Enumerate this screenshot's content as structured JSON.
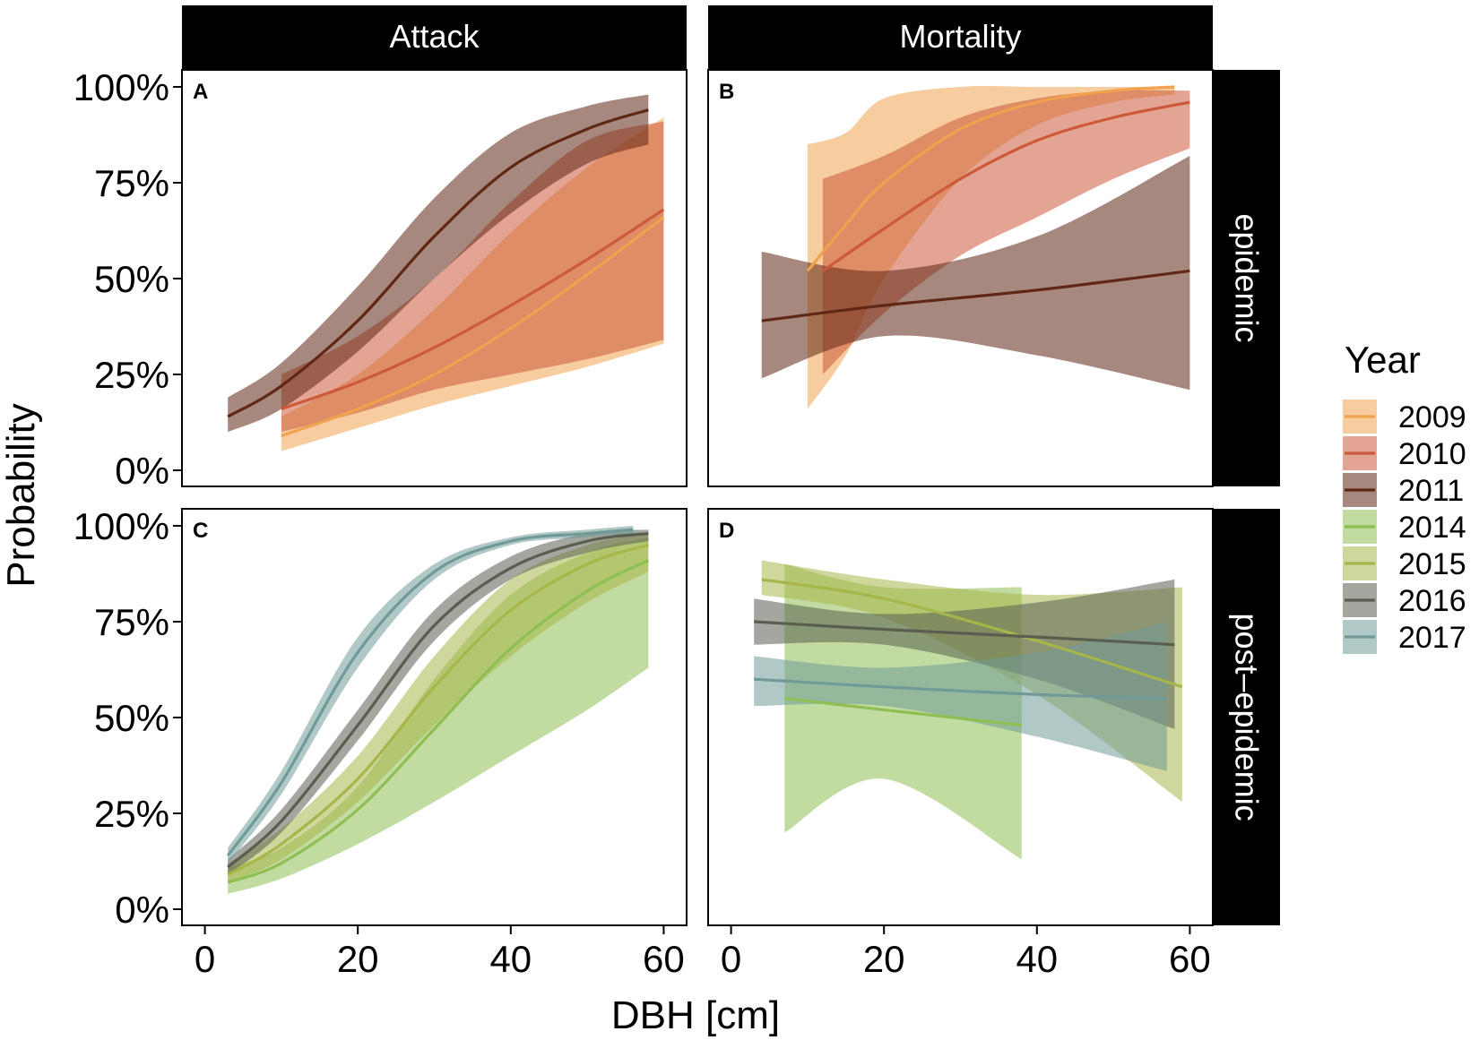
{
  "chart_data": {
    "type": "line",
    "title": "",
    "xlabel": "DBH [cm]",
    "ylabel": "Probability",
    "xlim": [
      -3,
      63
    ],
    "ylim": [
      0,
      100
    ],
    "x_ticks": [
      "0",
      "20",
      "40",
      "60"
    ],
    "y_ticks": [
      "0%",
      "25%",
      "50%",
      "75%",
      "100%"
    ],
    "column_strips": [
      "Attack",
      "Mortality"
    ],
    "row_strips": [
      "epidemic",
      "post–epidemic"
    ],
    "legend": {
      "title": "Year",
      "entries": [
        {
          "label": "2009",
          "color": "#f0a24e"
        },
        {
          "label": "2010",
          "color": "#cc5a3a"
        },
        {
          "label": "2011",
          "color": "#5f2714"
        },
        {
          "label": "2014",
          "color": "#8fbe52"
        },
        {
          "label": "2015",
          "color": "#a7b64a"
        },
        {
          "label": "2016",
          "color": "#5a5e50"
        },
        {
          "label": "2017",
          "color": "#6f9a98"
        }
      ]
    },
    "panels": [
      {
        "tag": "A",
        "row": 0,
        "col": 0,
        "series": [
          {
            "name": "2009",
            "x": [
              10,
              20,
              30,
              40,
              50,
              60
            ],
            "y": [
              9,
              16,
              25,
              37,
              51,
              66
            ],
            "lower": [
              5,
              11,
              17,
              22,
              27,
              33
            ],
            "upper": [
              14,
              25,
              42,
              62,
              79,
              92
            ]
          },
          {
            "name": "2010",
            "x": [
              10,
              20,
              30,
              40,
              50,
              60
            ],
            "y": [
              16,
              23,
              32,
              43,
              55,
              68
            ],
            "lower": [
              10,
              15,
              21,
              25,
              29,
              34
            ],
            "upper": [
              25,
              35,
              50,
              70,
              86,
              91
            ]
          },
          {
            "name": "2011",
            "x": [
              3,
              10,
              20,
              30,
              40,
              50,
              58
            ],
            "y": [
              14,
              22,
              39,
              61,
              79,
              89,
              94
            ],
            "lower": [
              10,
              16,
              31,
              50,
              67,
              80,
              85
            ],
            "upper": [
              19,
              28,
              48,
              71,
              88,
              95,
              98
            ]
          }
        ]
      },
      {
        "tag": "B",
        "row": 0,
        "col": 1,
        "series": [
          {
            "name": "2009",
            "x": [
              10,
              15,
              20,
              30,
              40,
              50,
              58
            ],
            "y": [
              52,
              64,
              75,
              89,
              96,
              99,
              100
            ],
            "lower": [
              16,
              30,
              50,
              76,
              90,
              96,
              98
            ],
            "upper": [
              85,
              88,
              97,
              100,
              100,
              100,
              100
            ]
          },
          {
            "name": "2010",
            "x": [
              12,
              20,
              30,
              40,
              50,
              60
            ],
            "y": [
              52,
              63,
              76,
              86,
              92,
              96
            ],
            "lower": [
              25,
              41,
              56,
              66,
              76,
              84
            ],
            "upper": [
              76,
              82,
              92,
              97,
              99,
              99
            ]
          },
          {
            "name": "2011",
            "x": [
              4,
              20,
              40,
              60
            ],
            "y": [
              39,
              43,
              47,
              52
            ],
            "lower": [
              24,
              35,
              30,
              21
            ],
            "upper": [
              57,
              52,
              61,
              82
            ]
          }
        ]
      },
      {
        "tag": "C",
        "row": 1,
        "col": 0,
        "series": [
          {
            "name": "2014",
            "x": [
              3,
              10,
              20,
              30,
              40,
              50,
              58
            ],
            "y": [
              7,
              12,
              26,
              47,
              68,
              83,
              91
            ],
            "lower": [
              4,
              8,
              17,
              28,
              40,
              52,
              63
            ],
            "upper": [
              11,
              16,
              32,
              60,
              82,
              93,
              97
            ]
          },
          {
            "name": "2015",
            "x": [
              3,
              10,
              20,
              30,
              40,
              50,
              58
            ],
            "y": [
              9,
              17,
              34,
              58,
              78,
              90,
              95
            ],
            "lower": [
              7,
              13,
              28,
              48,
              66,
              80,
              88
            ],
            "upper": [
              12,
              21,
              40,
              66,
              86,
              95,
              98
            ]
          },
          {
            "name": "2016",
            "x": [
              3,
              10,
              20,
              30,
              40,
              50,
              58
            ],
            "y": [
              11,
              23,
              48,
              74,
              89,
              96,
              98
            ],
            "lower": [
              9,
              20,
              44,
              70,
              86,
              93,
              96
            ],
            "upper": [
              13,
              26,
              52,
              78,
              92,
              98,
              99
            ]
          },
          {
            "name": "2017",
            "x": [
              3,
              10,
              20,
              30,
              40,
              50,
              56
            ],
            "y": [
              14,
              33,
              67,
              88,
              96,
              98,
              99
            ],
            "lower": [
              12,
              30,
              63,
              86,
              95,
              97,
              98
            ],
            "upper": [
              16,
              36,
              71,
              90,
              97,
              99,
              100
            ]
          }
        ]
      },
      {
        "tag": "D",
        "row": 1,
        "col": 1,
        "series": [
          {
            "name": "2014",
            "x": [
              7,
              20,
              38
            ],
            "y": [
              55,
              52,
              48
            ],
            "lower": [
              20,
              34,
              13
            ],
            "upper": [
              90,
              84,
              84
            ]
          },
          {
            "name": "2015",
            "x": [
              4,
              20,
              40,
              59
            ],
            "y": [
              86,
              81,
              70,
              58
            ],
            "lower": [
              82,
              76,
              56,
              28
            ],
            "upper": [
              91,
              86,
              82,
              84
            ]
          },
          {
            "name": "2016",
            "x": [
              3,
              20,
              40,
              58
            ],
            "y": [
              75,
              73,
              71,
              69
            ],
            "lower": [
              69,
              69,
              60,
              47
            ],
            "upper": [
              81,
              77,
              80,
              86
            ]
          },
          {
            "name": "2017",
            "x": [
              3,
              20,
              40,
              57
            ],
            "y": [
              60,
              58,
              56,
              55
            ],
            "lower": [
              53,
              53,
              45,
              36
            ],
            "upper": [
              66,
              63,
              67,
              75
            ]
          }
        ]
      }
    ]
  }
}
